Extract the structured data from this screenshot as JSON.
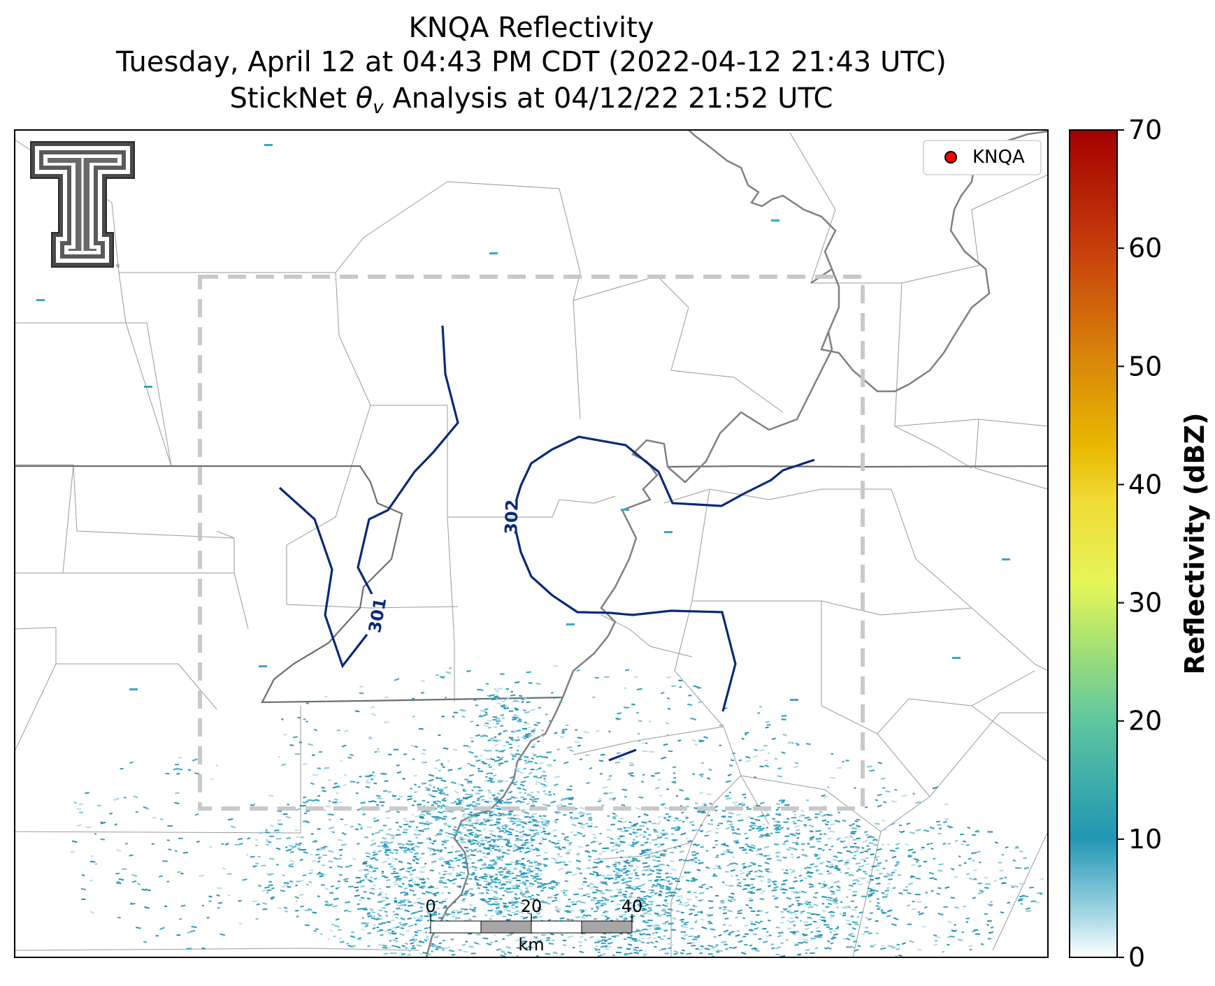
{
  "title": {
    "line1": "KNQA Reflectivity",
    "line2": "Tuesday, April 12 at 04:43 PM CDT (2022-04-12 21:43 UTC)",
    "line3_prefix": "StickNet ",
    "line3_theta": "θ",
    "line3_sub": "v",
    "line3_suffix": " Analysis at 04/12/22 21:52 UTC"
  },
  "legend": {
    "marker_label": "KNQA",
    "marker_color": "#ff0000"
  },
  "contours": [
    {
      "label": "301",
      "color": "#0a2a78"
    },
    {
      "label": "302",
      "color": "#0a2a78"
    }
  ],
  "scalebar": {
    "ticks": [
      "0",
      "20",
      "40"
    ],
    "unit": "km"
  },
  "colorbar": {
    "label": "Reflectivity (dBZ)",
    "ticks": [
      "0",
      "10",
      "20",
      "30",
      "40",
      "50",
      "60",
      "70"
    ],
    "range": [
      0,
      70
    ],
    "colors": [
      "#ffffff",
      "#2196b4",
      "#5fc6a0",
      "#c8ef5a",
      "#f2e93e",
      "#e0a800",
      "#d4610a",
      "#a80000"
    ]
  },
  "logo": {
    "name": "Texas Tech double-T logo"
  },
  "colors": {
    "contour": "#0a2a78",
    "domain_box": "#c9c9c9",
    "state_line": "#6e6e6e",
    "county_line": "#9a9a9a",
    "river": "#808080",
    "echo": "#2a9cbc"
  }
}
